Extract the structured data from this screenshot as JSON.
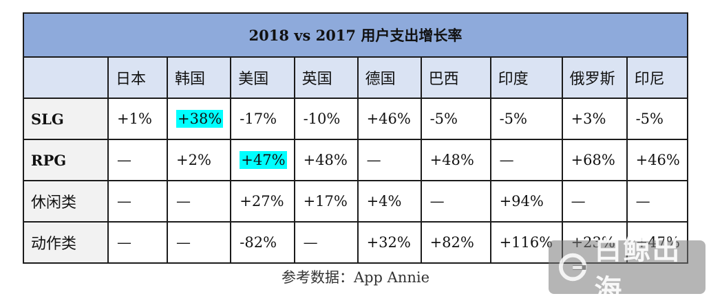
{
  "title": "2018 vs 2017 用户支出增长率",
  "columns": [
    "日本",
    "韩国",
    "美国",
    "英国",
    "德国",
    "巴西",
    "印度",
    "俄罗斯",
    "印尼"
  ],
  "rows": [
    {
      "label": "SLG",
      "values": [
        "+1%",
        "+38%",
        "-17%",
        "-10%",
        "+46%",
        "-5%",
        "-5%",
        "+3%",
        "-5%"
      ]
    },
    {
      "label": "RPG",
      "values": [
        "—",
        "+2%",
        "+47%",
        "+48%",
        "—",
        "+48%",
        "—",
        "+68%",
        "+46%"
      ]
    },
    {
      "label": "休闲类",
      "values": [
        "—",
        "—",
        "+27%",
        "+17%",
        "+4%",
        "—",
        "+94%",
        "—",
        "—"
      ]
    },
    {
      "label": "动作类",
      "values": [
        "—",
        "—",
        "-82%",
        "—",
        "+32%",
        "+82%",
        "+116%",
        "+23%",
        "+47%"
      ]
    }
  ],
  "highlights": [
    "rows.0.values.1",
    "rows.1.values.2"
  ],
  "highlight_color": "#00ffff",
  "source": "参考数据：App Annie",
  "watermark": {
    "text": "白鲸出海"
  },
  "colors": {
    "title_bg": "#8eaadb",
    "header_bg": "#dae3f3",
    "label_bg": "#f2f2f2"
  }
}
